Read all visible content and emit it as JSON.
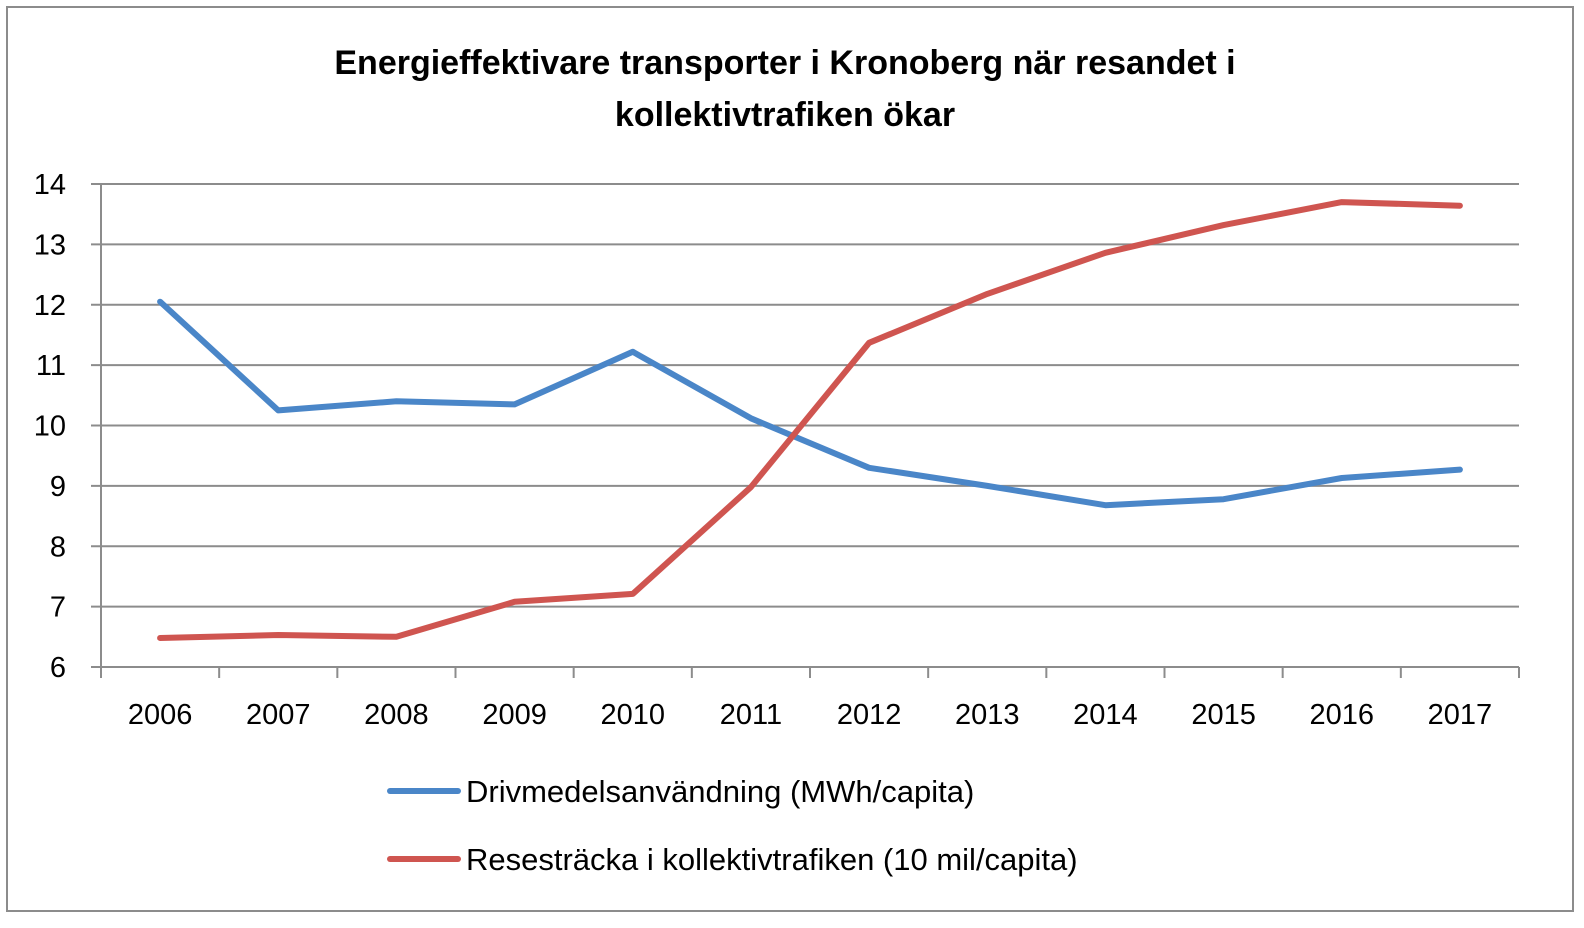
{
  "chart_data": {
    "type": "line",
    "title": "Energieffektivare transporter i Kronoberg när resandet i kollektivtrafiken ökar",
    "title_lines": [
      "Energieffektivare transporter i Kronoberg när resandet i",
      "kollektivtrafiken ökar"
    ],
    "xlabel": "",
    "ylabel": "",
    "x": [
      "2006",
      "2007",
      "2008",
      "2009",
      "2010",
      "2011",
      "2012",
      "2013",
      "2014",
      "2015",
      "2016",
      "2017"
    ],
    "ylim": [
      6,
      14
    ],
    "yticks": [
      "6",
      "7",
      "8",
      "9",
      "10",
      "11",
      "12",
      "13",
      "14"
    ],
    "grid": true,
    "legend_position": "bottom",
    "series": [
      {
        "name": "Drivmedelsanvändning (MWh/capita)",
        "color": "#4a86c8",
        "values": [
          12.05,
          10.25,
          10.4,
          10.35,
          11.22,
          10.12,
          9.3,
          9.0,
          8.68,
          8.78,
          9.13,
          9.27
        ]
      },
      {
        "name": "Resesträcka i kollektivtrafiken (10 mil/capita)",
        "color": "#cf5550",
        "values": [
          6.48,
          6.53,
          6.5,
          7.08,
          7.21,
          8.98,
          11.37,
          12.18,
          12.86,
          13.32,
          13.7,
          13.64
        ]
      }
    ]
  }
}
